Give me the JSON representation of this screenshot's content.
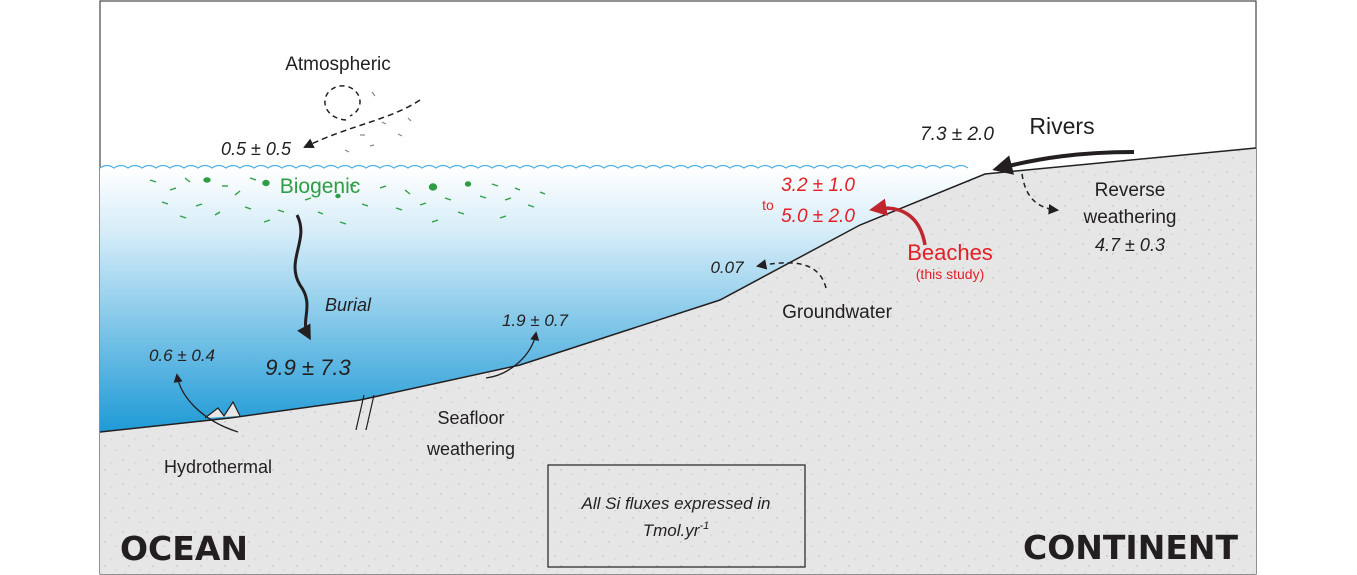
{
  "regions": {
    "ocean": "OCEAN",
    "continent": "CONTINENT"
  },
  "fluxes": {
    "atmospheric": {
      "label": "Atmospheric",
      "value": "0.5 ± 0.5"
    },
    "biogenic": {
      "label": "Biogenic"
    },
    "burial": {
      "label": "Burial",
      "value": "9.9 ± 7.3"
    },
    "hydrothermal": {
      "label": "Hydrothermal",
      "value": "0.6 ± 0.4"
    },
    "seafloor_weathering": {
      "label_line1": "Seafloor",
      "label_line2": "weathering",
      "value": "1.9 ± 0.7"
    },
    "groundwater": {
      "label": "Groundwater",
      "value": "0.07"
    },
    "beaches": {
      "label": "Beaches",
      "note": "(this study)",
      "value_low": "3.2 ± 1.0",
      "connector": "to",
      "value_high": "5.0 ± 2.0"
    },
    "rivers": {
      "label": "Rivers",
      "value": "7.3 ± 2.0"
    },
    "reverse_weathering": {
      "label_line1": "Reverse",
      "label_line2": "weathering",
      "value": "4.7 ± 0.3"
    }
  },
  "units_box": {
    "line1": "All Si fluxes expressed in",
    "line2_main": "Tmol.yr",
    "line2_sup": "-1"
  },
  "colors": {
    "ocean_top": "#ffffff",
    "ocean_bottom": "#1e9ad6",
    "sediment": "#e6e6e6",
    "arrow_dark": "#231f20",
    "beach_red": "#e41e26",
    "beach_arrow": "#c0262d",
    "biogenic_green": "#2e9e45"
  },
  "icons": {
    "dust_loop": "dust-loop-icon",
    "wave_line": "wave-line-icon",
    "vent": "hydrothermal-vent-icon",
    "break_marks": "break-marks-icon"
  }
}
